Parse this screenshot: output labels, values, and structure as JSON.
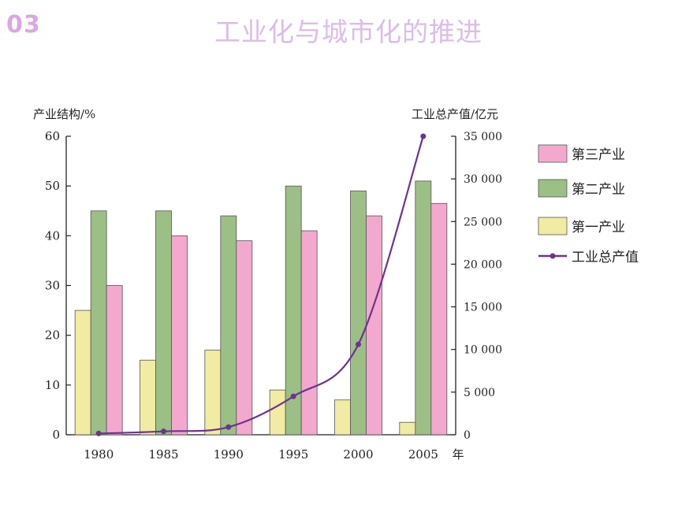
{
  "slide": {
    "number": "03",
    "title": "工业化与城市化的推进"
  },
  "chart_data": {
    "type": "bar",
    "categories": [
      "1980",
      "1985",
      "1990",
      "1995",
      "2000",
      "2005"
    ],
    "x_unit": "年",
    "ylabel_left": "产业结构/%",
    "ylabel_right": "工业总产值/亿元",
    "ylim_left": [
      0,
      60
    ],
    "ylim_right": [
      0,
      35000
    ],
    "yticks_left": [
      "0",
      "10",
      "20",
      "30",
      "40",
      "50",
      "60"
    ],
    "yticks_right": [
      "0",
      "5 000",
      "10 000",
      "15 000",
      "20 000",
      "25 000",
      "30 000",
      "35 000"
    ],
    "series": [
      {
        "name": "第一产业",
        "axis": "left",
        "color": "#f1eba3",
        "values": [
          25,
          15,
          17,
          9,
          7,
          2.5
        ]
      },
      {
        "name": "第二产业",
        "axis": "left",
        "color": "#9cbf85",
        "values": [
          45,
          45,
          44,
          50,
          49,
          51
        ]
      },
      {
        "name": "第三产业",
        "axis": "left",
        "color": "#f3a9cd",
        "values": [
          30,
          40,
          39,
          41,
          44,
          46.5
        ]
      },
      {
        "name": "工业总产值",
        "axis": "right",
        "type": "line",
        "color": "#6d3390",
        "values": [
          150,
          400,
          900,
          4500,
          10600,
          35000
        ]
      }
    ],
    "legend": [
      {
        "label": "第三产业",
        "kind": "swatch",
        "color": "#f3a9cd"
      },
      {
        "label": "第二产业",
        "kind": "swatch",
        "color": "#9cbf85"
      },
      {
        "label": "第一产业",
        "kind": "swatch",
        "color": "#f1eba3"
      },
      {
        "label": "工业总产值",
        "kind": "line",
        "color": "#6d3390"
      }
    ],
    "legend_position": "right",
    "grid": false
  }
}
